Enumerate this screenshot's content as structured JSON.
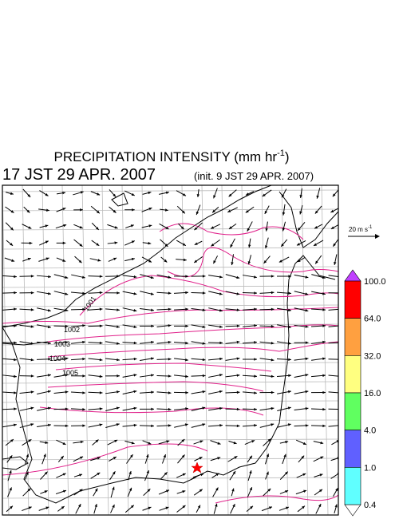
{
  "title": {
    "text": "PRECIPITATION INTENSITY (mm hr",
    "superscript": "-1",
    "close": ")"
  },
  "valid_time": "17 JST 29 APR. 2007",
  "init_time": "(init. 9 JST 29 APR. 2007)",
  "isobar_labels": [
    "1001",
    "1002",
    "1003",
    "1004",
    "1005"
  ],
  "reference_vector": {
    "text": "20 m s",
    "superscript": "-1"
  },
  "colorbar": {
    "labels": [
      "100.0",
      "64.0",
      "32.0",
      "16.0",
      "4.0",
      "1.0",
      "0.4"
    ],
    "colors": [
      "#ff0000",
      "#ffa040",
      "#ffff80",
      "#60ff60",
      "#6060ff",
      "#60ffff"
    ],
    "over_color": "#c040ff",
    "under_color": "#ffffff"
  }
}
